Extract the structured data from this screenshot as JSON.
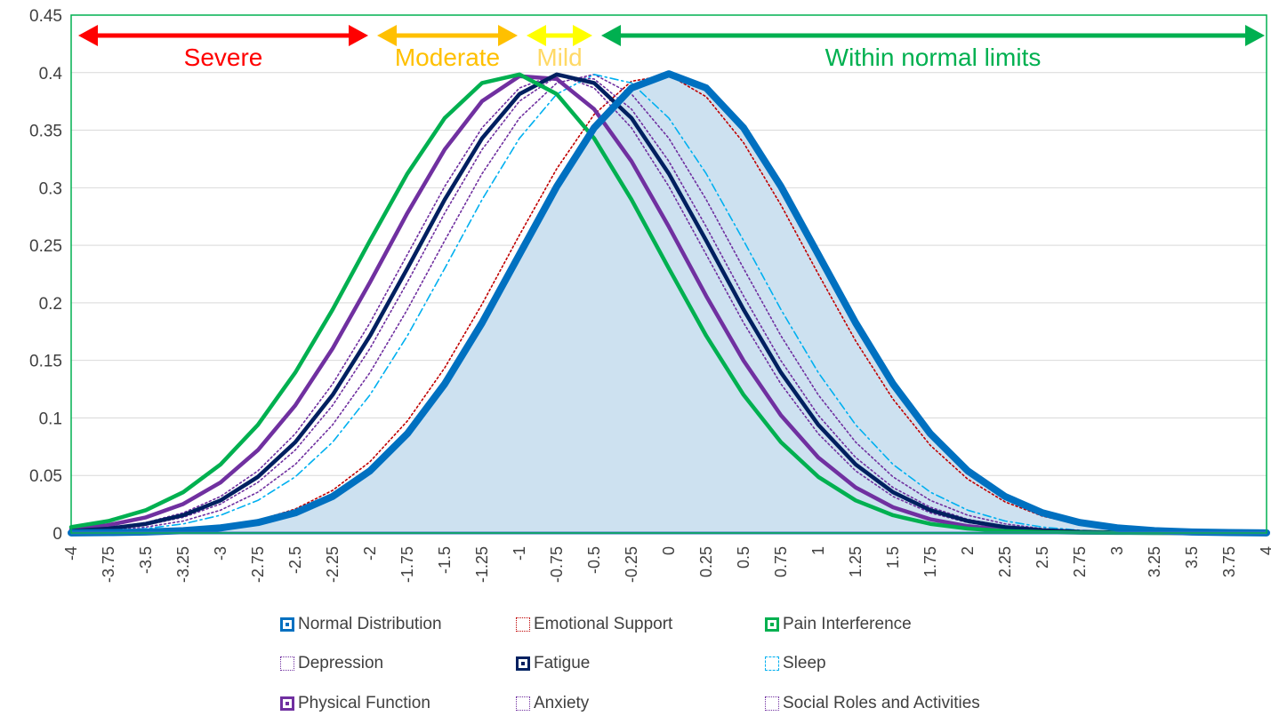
{
  "chart_data": {
    "type": "line",
    "x": [
      -4,
      -3.75,
      -3.5,
      -3.25,
      -3,
      -2.75,
      -2.5,
      -2.25,
      -2,
      -1.75,
      -1.5,
      -1.25,
      -1,
      -0.75,
      -0.5,
      -0.25,
      0,
      0.25,
      0.5,
      0.75,
      1,
      1.25,
      1.5,
      1.75,
      2,
      2.25,
      2.5,
      2.75,
      3,
      3.25,
      3.5,
      3.75,
      4
    ],
    "x_tick_labels": [
      "-4",
      "-3.75",
      "-3.5",
      "-3.25",
      "-3",
      "-2.75",
      "-2.5",
      "-2.25",
      "-2",
      "-1.75",
      "-1.5",
      "-1.25",
      "-1",
      "-0.75",
      "-0.5",
      "-0.25",
      "0",
      "0.25",
      "0.5",
      "0.75",
      "1",
      "1.25",
      "1.5",
      "1.75",
      "2",
      "2.25",
      "2.5",
      "2.75",
      "3",
      "3.25",
      "3.5",
      "3.75",
      "4"
    ],
    "y_tick_labels": [
      "0",
      "0.05",
      "0.1",
      "0.15",
      "0.2",
      "0.25",
      "0.3",
      "0.35",
      "0.4",
      "0.45"
    ],
    "ylim": [
      0,
      0.45
    ],
    "xlim": [
      -4,
      4
    ],
    "grid": "horizontal",
    "legend_position": "bottom",
    "series": [
      {
        "name": "Normal Distribution",
        "color": "#0070C0",
        "style": "solid-thick-filled",
        "fill": "#CDE1F0",
        "mean": 0,
        "sd": 1
      },
      {
        "name": "Emotional Support",
        "color": "#C00000",
        "style": "dotted",
        "mean": -0.07,
        "sd": 1
      },
      {
        "name": "Pain Interference",
        "color": "#00B050",
        "style": "solid",
        "mean": -1.05,
        "sd": 1
      },
      {
        "name": "Depression",
        "color": "#7030A0",
        "style": "dotted",
        "mean": -0.65,
        "sd": 1
      },
      {
        "name": "Fatigue",
        "color": "#002060",
        "style": "solid",
        "mean": -0.7,
        "sd": 1
      },
      {
        "name": "Sleep",
        "color": "#00B0F0",
        "style": "dash-dot",
        "mean": -0.45,
        "sd": 1
      },
      {
        "name": "Physical Function",
        "color": "#7030A0",
        "style": "solid",
        "mean": -0.9,
        "sd": 1
      },
      {
        "name": "Anxiety",
        "color": "#7030A0",
        "style": "dotted",
        "mean": -0.55,
        "sd": 1
      },
      {
        "name": "Social Roles and Activities",
        "color": "#7030A0",
        "style": "dotted",
        "mean": -0.75,
        "sd": 1
      }
    ],
    "ranges": [
      {
        "label": "Severe",
        "color": "#FF0000",
        "from": -4,
        "to": -2
      },
      {
        "label": "Moderate",
        "color": "#FFC000",
        "from": -2,
        "to": -1
      },
      {
        "label": "Mild",
        "color": "#FFFF00",
        "label_color": "#FFD966",
        "from": -1,
        "to": -0.5
      },
      {
        "label": "Within normal limits",
        "color": "#00B050",
        "from": -0.5,
        "to": 4
      }
    ]
  },
  "legend": [
    {
      "label": "Normal Distribution",
      "color": "#0070C0",
      "swatch": "filled"
    },
    {
      "label": "Emotional Support",
      "color": "#C00000",
      "swatch": "dotted"
    },
    {
      "label": "Pain Interference",
      "color": "#00B050",
      "swatch": "filled"
    },
    {
      "label": "Depression",
      "color": "#7030A0",
      "swatch": "dotted"
    },
    {
      "label": "Fatigue",
      "color": "#002060",
      "swatch": "filled"
    },
    {
      "label": "Sleep",
      "color": "#00B0F0",
      "swatch": "dashed"
    },
    {
      "label": "Physical Function",
      "color": "#7030A0",
      "swatch": "filled"
    },
    {
      "label": "Anxiety",
      "color": "#7030A0",
      "swatch": "dotted"
    },
    {
      "label": "Social Roles and Activities",
      "color": "#7030A0",
      "swatch": "dotted"
    }
  ]
}
